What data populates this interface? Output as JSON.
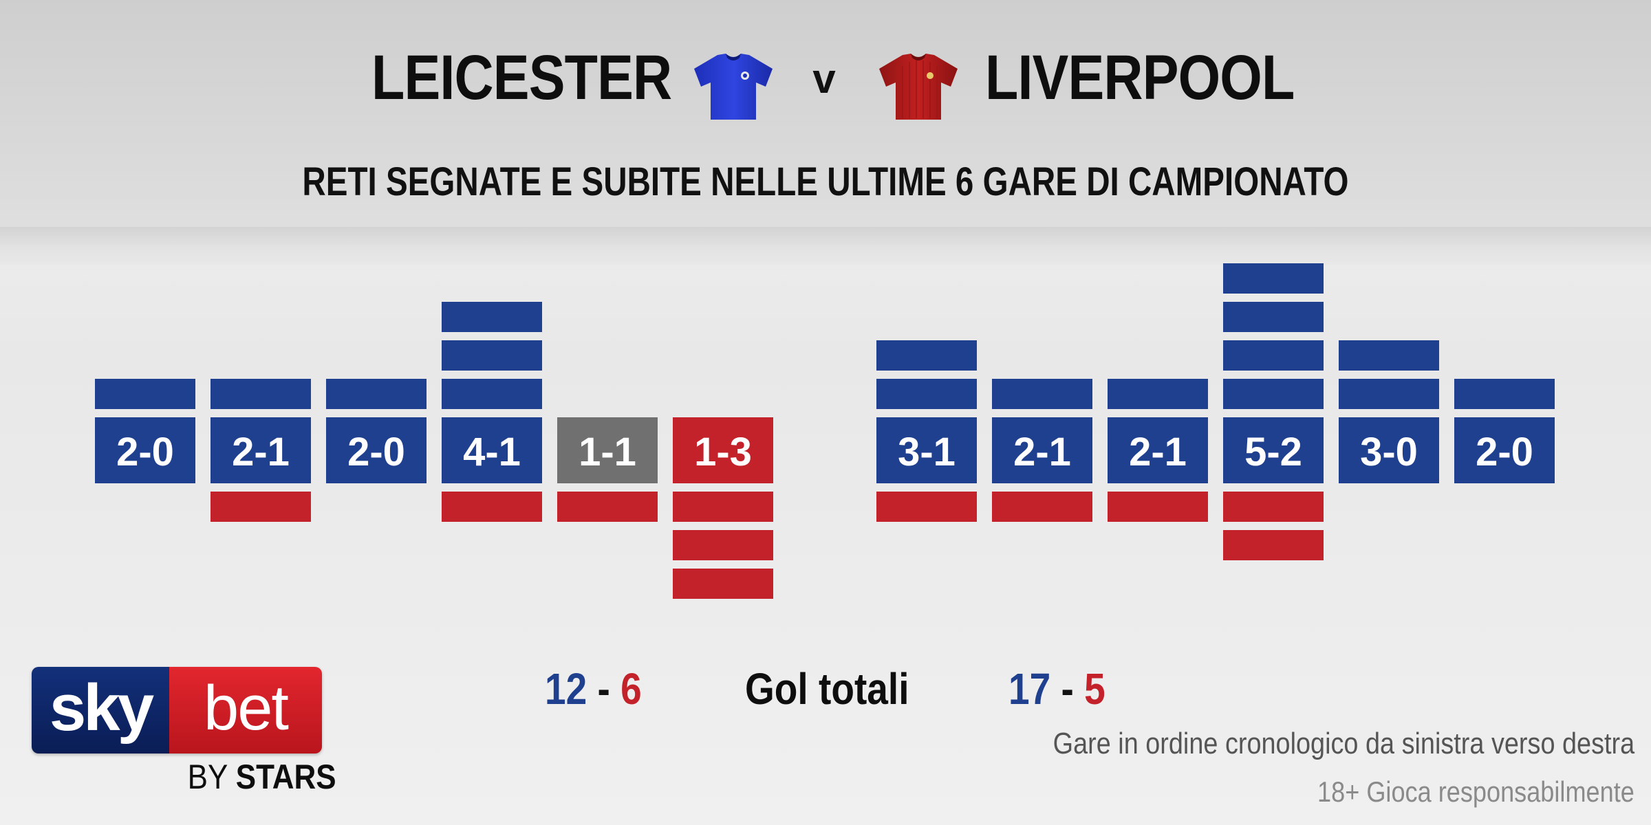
{
  "header": {
    "home_team": "LEICESTER",
    "versus": "v",
    "away_team": "LIVERPOOL",
    "subtitle": "RETI SEGNATE E SUBITE NELLE ULTIME 6 GARE DI CAMPIONATO"
  },
  "icons": {
    "home_shirt": "blue-football-shirt-icon",
    "away_shirt": "red-football-shirt-icon"
  },
  "colors": {
    "scored": "#1f3f8f",
    "conceded": "#c3222a",
    "draw": "#707070"
  },
  "chart_data": [
    {
      "type": "bar",
      "team": "LEICESTER",
      "categories": [
        "2-0",
        "2-1",
        "2-0",
        "4-1",
        "1-1",
        "1-3"
      ],
      "series": [
        {
          "values": [
            2,
            2,
            2,
            4,
            1,
            1
          ]
        },
        {
          "values": [
            0,
            1,
            0,
            1,
            1,
            3
          ]
        }
      ],
      "results": [
        "win",
        "win",
        "win",
        "win",
        "draw",
        "loss"
      ]
    },
    {
      "type": "bar",
      "team": "LIVERPOOL",
      "categories": [
        "3-1",
        "2-1",
        "2-1",
        "5-2",
        "3-0",
        "2-0"
      ],
      "series": [
        {
          "values": [
            3,
            2,
            2,
            5,
            3,
            2
          ]
        },
        {
          "values": [
            1,
            1,
            1,
            2,
            0,
            0
          ]
        }
      ],
      "results": [
        "win",
        "win",
        "win",
        "win",
        "win",
        "win"
      ]
    }
  ],
  "totals": {
    "home_scored": "12",
    "home_conceded": "6",
    "away_scored": "17",
    "away_conceded": "5",
    "separator": "-",
    "label": "Gol totali"
  },
  "notes": {
    "order": "Gare in ordine cronologico da sinistra verso destra",
    "responsible": "18+ Gioca responsabilmente"
  },
  "logo": {
    "sky": "sky",
    "bet": "bet",
    "by": "BY",
    "stars": "STARS"
  }
}
